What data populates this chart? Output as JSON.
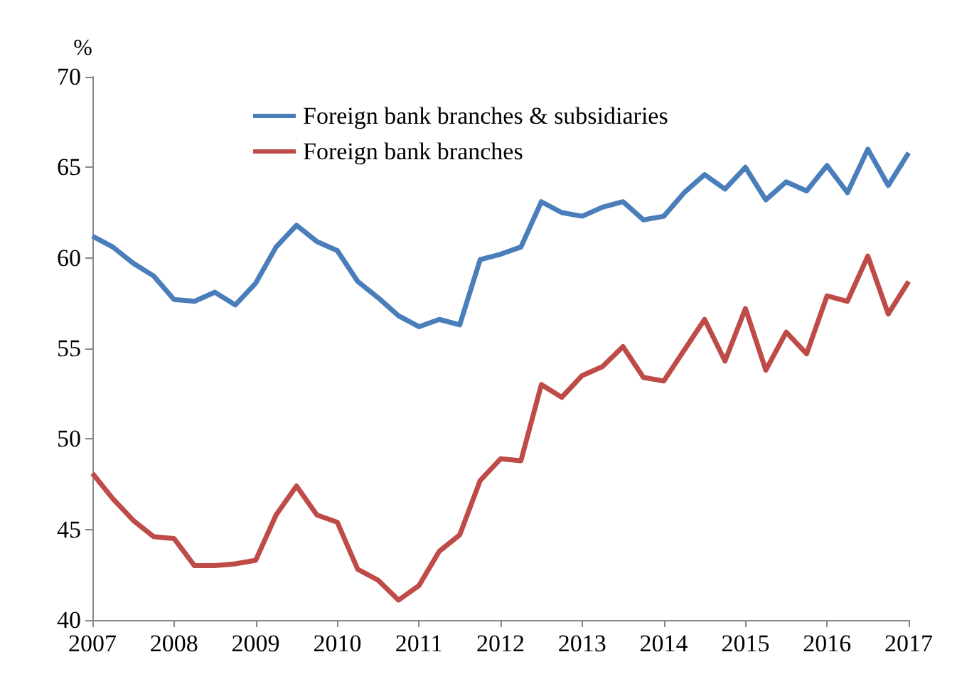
{
  "chart_data": {
    "type": "line",
    "ylabel": "%",
    "x": [
      2007,
      2007.25,
      2007.5,
      2007.75,
      2008,
      2008.25,
      2008.5,
      2008.75,
      2009,
      2009.25,
      2009.5,
      2009.75,
      2010,
      2010.25,
      2010.5,
      2010.75,
      2011,
      2011.25,
      2011.5,
      2011.75,
      2012,
      2012.25,
      2012.5,
      2012.75,
      2013,
      2013.25,
      2013.5,
      2013.75,
      2014,
      2014.25,
      2014.5,
      2014.75,
      2015,
      2015.25,
      2015.5,
      2015.75,
      2016,
      2016.25,
      2016.5,
      2016.75,
      2017
    ],
    "series": [
      {
        "name": "Foreign bank branches & subsidiaries",
        "color": "#4a7ebb",
        "values": [
          61.2,
          60.6,
          59.7,
          59.0,
          57.7,
          57.6,
          58.1,
          57.4,
          58.6,
          60.6,
          61.8,
          60.9,
          60.4,
          58.7,
          57.8,
          56.8,
          56.2,
          56.6,
          56.3,
          59.9,
          60.2,
          60.6,
          63.1,
          62.5,
          62.3,
          62.8,
          63.1,
          62.1,
          62.3,
          63.6,
          64.6,
          63.8,
          65.0,
          63.2,
          64.2,
          63.7,
          65.1,
          63.6,
          66.0,
          64.0,
          65.8
        ]
      },
      {
        "name": "Foreign bank branches",
        "color": "#be4b48",
        "values": [
          48.1,
          46.7,
          45.5,
          44.6,
          44.5,
          43.0,
          43.0,
          43.1,
          43.3,
          45.8,
          47.4,
          45.8,
          45.4,
          42.8,
          42.2,
          41.1,
          41.9,
          43.8,
          44.7,
          47.7,
          48.9,
          48.8,
          53.0,
          52.3,
          53.5,
          54.0,
          55.1,
          53.4,
          53.2,
          54.9,
          56.6,
          54.3,
          57.2,
          53.8,
          55.9,
          54.7,
          57.9,
          57.6,
          60.1,
          56.9,
          58.7
        ]
      }
    ],
    "xlim": [
      2007,
      2017
    ],
    "xticks": [
      2007,
      2008,
      2009,
      2010,
      2011,
      2012,
      2013,
      2014,
      2015,
      2016,
      2017
    ],
    "ylim": [
      40,
      70
    ],
    "yticks": [
      40,
      45,
      50,
      55,
      60,
      65,
      70
    ],
    "grid": false,
    "legend": "top left",
    "marker": "none",
    "line_style": "solid"
  }
}
